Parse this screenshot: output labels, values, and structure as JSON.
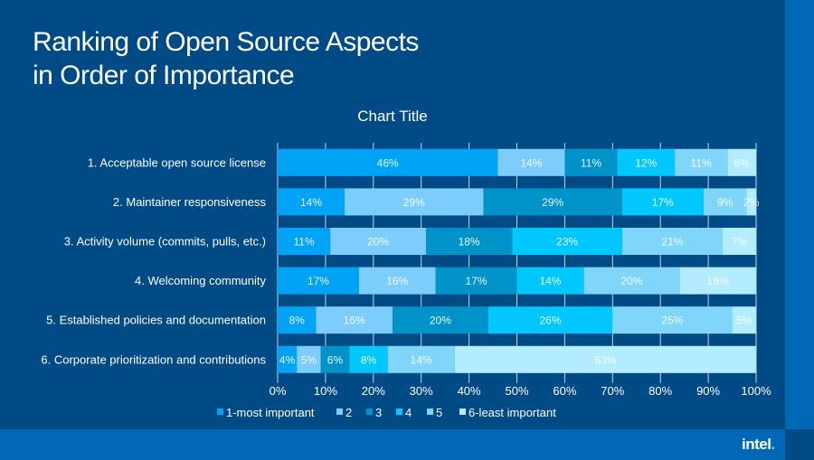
{
  "slide": {
    "title_line1": "Ranking of Open Source Aspects",
    "title_line2": "in Order of Importance",
    "logo": "intel"
  },
  "chart_data": {
    "type": "bar",
    "orientation": "horizontal",
    "stacked": "100%",
    "title": "Chart Title",
    "categories": [
      "1. Acceptable open source license",
      "2. Maintainer responsiveness",
      "3. Activity volume (commits, pulls, etc.)",
      "4. Welcoming community",
      "5. Established policies and documentation",
      "6. Corporate prioritization and contributions"
    ],
    "series": [
      {
        "name": "1-most important",
        "color": "#00a3f6",
        "values": [
          46,
          14,
          11,
          17,
          8,
          4
        ]
      },
      {
        "name": "2",
        "color": "#7dcdfc",
        "values": [
          14,
          29,
          20,
          16,
          16,
          5
        ]
      },
      {
        "name": "3",
        "color": "#0093c9",
        "values": [
          11,
          29,
          18,
          17,
          20,
          6
        ]
      },
      {
        "name": "4",
        "color": "#00c7fd",
        "values": [
          12,
          17,
          23,
          14,
          26,
          8
        ]
      },
      {
        "name": "5",
        "color": "#7fd6fa",
        "values": [
          11,
          9,
          21,
          20,
          25,
          14
        ]
      },
      {
        "name": "6-least important",
        "color": "#b4ecff",
        "values": [
          6,
          2,
          7,
          16,
          5,
          63
        ]
      }
    ],
    "xlim": [
      0,
      100
    ],
    "xticks": [
      "0%",
      "10%",
      "20%",
      "30%",
      "40%",
      "50%",
      "60%",
      "70%",
      "80%",
      "90%",
      "100%"
    ],
    "grid": true,
    "legend": "bottom",
    "data_labels": true
  }
}
